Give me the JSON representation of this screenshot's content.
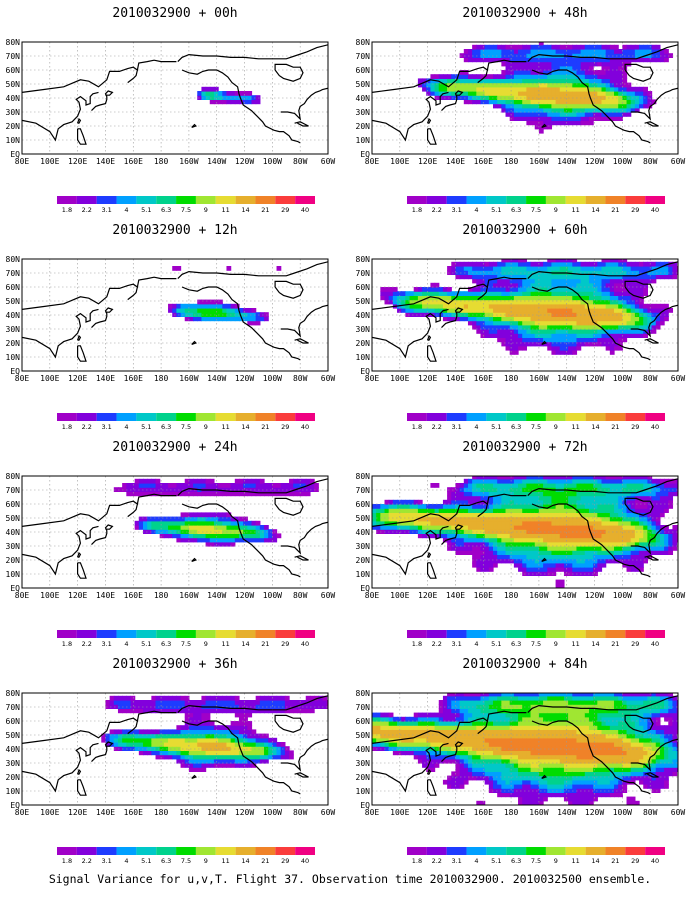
{
  "figure": {
    "caption": "Signal Variance for u,v,T. Flight 37. Observation time 2010032900. 2010032500 ensemble."
  },
  "colors": {
    "ocean": "#ffffff",
    "coast": "#000000",
    "grid": "#9a9a9a",
    "palette": [
      "#a000c8",
      "#8200dc",
      "#1e3cff",
      "#00a0ff",
      "#00c8c8",
      "#00d28c",
      "#00dc00",
      "#a0e632",
      "#e6dc32",
      "#e6af2d",
      "#f08228",
      "#fa3c3c",
      "#f00082"
    ]
  },
  "chart_data": {
    "type": "heatmap",
    "colorbar_labels": [
      "1.8",
      "2.2",
      "3.1",
      "4",
      "5.1",
      "6.3",
      "7.5",
      "9",
      "11",
      "14",
      "21",
      "29",
      "40"
    ],
    "x_ticks": [
      "80E",
      "100E",
      "120E",
      "140E",
      "160E",
      "180",
      "160W",
      "140W",
      "120W",
      "100W",
      "80W",
      "60W"
    ],
    "y_ticks": [
      "EQ",
      "10N",
      "20N",
      "30N",
      "40N",
      "50N",
      "60N",
      "70N",
      "80N"
    ],
    "lon_range": [
      80,
      300
    ],
    "lat_range": [
      0,
      80
    ],
    "panels": [
      {
        "title": "2010032900 + 00h",
        "tau": 0
      },
      {
        "title": "2010032900 + 12h",
        "tau": 12
      },
      {
        "title": "2010032900 + 24h",
        "tau": 24
      },
      {
        "title": "2010032900 + 36h",
        "tau": 36
      },
      {
        "title": "2010032900 + 48h",
        "tau": 48
      },
      {
        "title": "2010032900 + 60h",
        "tau": 60
      },
      {
        "title": "2010032900 + 72h",
        "tau": 72
      },
      {
        "title": "2010032900 + 84h",
        "tau": 84
      }
    ]
  }
}
